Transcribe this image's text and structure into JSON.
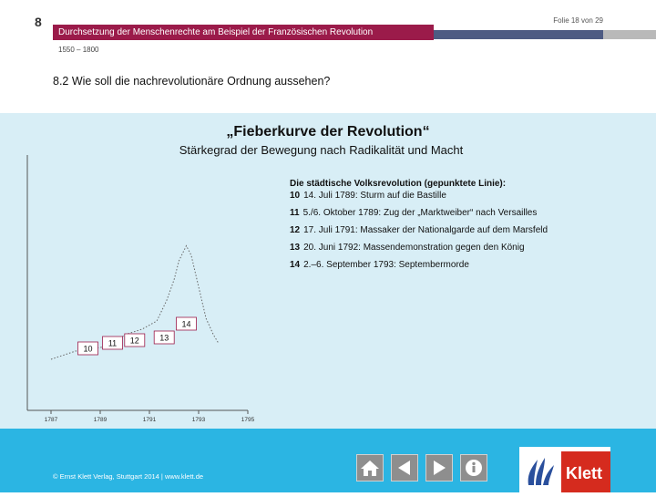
{
  "header": {
    "chapter_number": "8",
    "title": "Durchsetzung der Menschenrechte am Beispiel der Französischen Revolution",
    "slide_counter": "Folie 18 von 29",
    "period": "1550 – 1800",
    "subheading": "8.2  Wie soll die nachrevolutionäre Ordnung aussehen?"
  },
  "chart_data": {
    "type": "line",
    "title": "„Fieberkurve der Revolution“",
    "subtitle": "Stärkegrad der Bewegung nach Radikalität und Macht",
    "x_ticks": [
      "1787",
      "1789",
      "1791",
      "1793",
      "1795"
    ],
    "series": [
      {
        "style": "dotted",
        "points": [
          [
            1787.0,
            12
          ],
          [
            1788.0,
            18
          ],
          [
            1789.5,
            22
          ],
          [
            1790.0,
            30
          ],
          [
            1790.7,
            34
          ],
          [
            1791.3,
            40
          ],
          [
            1791.7,
            55
          ],
          [
            1792.0,
            70
          ],
          [
            1792.2,
            84
          ],
          [
            1792.5,
            95
          ],
          [
            1792.7,
            88
          ],
          [
            1793.0,
            65
          ],
          [
            1793.3,
            42
          ],
          [
            1793.6,
            30
          ],
          [
            1793.8,
            24
          ]
        ]
      }
    ],
    "markers": [
      {
        "label": "10",
        "x": 1788.5,
        "y": 20
      },
      {
        "label": "11",
        "x": 1789.5,
        "y": 24
      },
      {
        "label": "12",
        "x": 1790.4,
        "y": 26
      },
      {
        "label": "13",
        "x": 1791.6,
        "y": 28
      },
      {
        "label": "14",
        "x": 1792.5,
        "y": 38
      }
    ],
    "legend_title": "Die städtische Volksrevolution (gepunktete Linie):",
    "legend": [
      {
        "num": "10",
        "text": "14. Juli 1789: Sturm auf die Bastille"
      },
      {
        "num": "11",
        "text": "5./6. Oktober 1789: Zug der „Marktweiber“ nach Versailles"
      },
      {
        "num": "12",
        "text": "17. Juli 1791: Massaker der Nationalgarde auf dem Marsfeld"
      },
      {
        "num": "13",
        "text": "20. Juni 1792: Massendemonstration gegen den König"
      },
      {
        "num": "14",
        "text": "2.–6. September 1793: Septembermorde"
      }
    ]
  },
  "footer": {
    "copyright": "© Ernst Klett Verlag, Stuttgart 2014 | www.klett.de",
    "nav": [
      {
        "name": "home-icon"
      },
      {
        "name": "back-arrow-icon"
      },
      {
        "name": "forward-arrow-icon"
      },
      {
        "name": "info-icon"
      }
    ],
    "logo_text": "Klett"
  },
  "colors": {
    "title_bar": "#9b1b4a",
    "content_bg": "#d8eef6",
    "footer_bg": "#2bb5e3",
    "logo_red": "#d52b1e"
  }
}
